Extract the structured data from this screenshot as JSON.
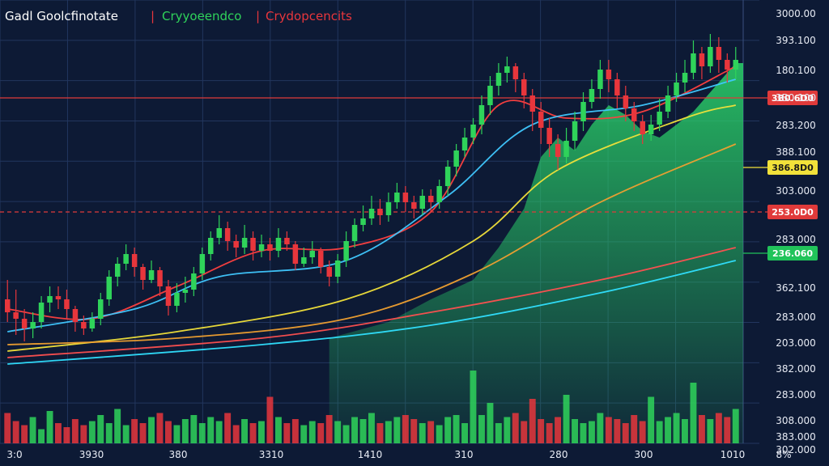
{
  "header": {
    "title": "Gadl Goolcfinotate",
    "separator_1": "|",
    "indicator_green": "Cryyoeendco",
    "separator_2": "|",
    "indicator_red": "Crydopcencits"
  },
  "colors": {
    "background": "#0d1a35",
    "grid": "#22365e",
    "up": "#2fd35a",
    "down": "#e8363c",
    "ma_fast": "#ff4040",
    "ma_mid": "#40c8ff",
    "ma_slow_yellow": "#f2e23a",
    "ma_slow_orange": "#f0a030",
    "ma_long_red": "#ff5050",
    "ma_long_cyan": "#30e0ff",
    "area_fill": "#2bd46a",
    "tag_red_bg": "#e03a3a",
    "tag_yellow_bg": "#f2e23a",
    "tag_green_bg": "#21c35a"
  },
  "chart_data": {
    "type": "candlestick",
    "y_axis_labels": [
      "3000.00",
      "393.100",
      "180.100",
      "3B0.100",
      "283.200",
      "388.100",
      "303.000",
      "283.000",
      "362.100",
      "283.000",
      "203.000",
      "382.000",
      "283.000",
      "308.000",
      "383.000",
      "302.000"
    ],
    "x_axis_labels": [
      "3:0",
      "3930",
      "380",
      "3310",
      "1410",
      "310",
      "280",
      "300",
      "1010"
    ],
    "x_axis_corner_label": "8%",
    "price_tags": [
      {
        "label": "3B0.6D0",
        "style": "red"
      },
      {
        "label": "386.8D0",
        "style": "yellow"
      },
      {
        "label": "253.0D0",
        "style": "red-dashed"
      },
      {
        "label": "236.060",
        "style": "green"
      }
    ],
    "ohlc": [
      [
        40,
        36,
        46,
        33
      ],
      [
        36,
        34,
        43,
        29
      ],
      [
        34,
        31,
        37,
        27
      ],
      [
        31,
        33,
        36,
        28
      ],
      [
        33,
        39,
        41,
        31
      ],
      [
        39,
        41,
        44,
        36
      ],
      [
        41,
        40,
        44,
        37
      ],
      [
        40,
        37,
        43,
        34
      ],
      [
        37,
        33,
        38,
        30
      ],
      [
        33,
        31,
        35,
        29
      ],
      [
        31,
        34,
        36,
        30
      ],
      [
        34,
        40,
        42,
        32
      ],
      [
        40,
        47,
        49,
        38
      ],
      [
        47,
        51,
        53,
        44
      ],
      [
        51,
        54,
        57,
        49
      ],
      [
        54,
        50,
        56,
        47
      ],
      [
        50,
        46,
        51,
        43
      ],
      [
        46,
        49,
        52,
        45
      ],
      [
        49,
        44,
        50,
        41
      ],
      [
        44,
        38,
        46,
        35
      ],
      [
        38,
        42,
        45,
        36
      ],
      [
        42,
        43,
        47,
        39
      ],
      [
        43,
        48,
        50,
        41
      ],
      [
        48,
        54,
        56,
        46
      ],
      [
        54,
        59,
        61,
        52
      ],
      [
        59,
        62,
        66,
        57
      ],
      [
        62,
        58,
        64,
        55
      ],
      [
        58,
        56,
        60,
        53
      ],
      [
        56,
        59,
        63,
        54
      ],
      [
        59,
        55,
        61,
        52
      ],
      [
        55,
        57,
        60,
        53
      ],
      [
        57,
        55,
        59,
        52
      ],
      [
        55,
        59,
        62,
        53
      ],
      [
        59,
        57,
        61,
        55
      ],
      [
        57,
        51,
        58,
        49
      ],
      [
        51,
        53,
        56,
        50
      ],
      [
        53,
        55,
        58,
        51
      ],
      [
        55,
        50,
        56,
        48
      ],
      [
        50,
        47,
        52,
        44
      ],
      [
        47,
        52,
        54,
        45
      ],
      [
        52,
        58,
        61,
        50
      ],
      [
        58,
        63,
        65,
        56
      ],
      [
        63,
        65,
        69,
        61
      ],
      [
        65,
        68,
        72,
        63
      ],
      [
        68,
        66,
        71,
        63
      ],
      [
        66,
        70,
        73,
        64
      ],
      [
        70,
        73,
        76,
        68
      ],
      [
        73,
        70,
        75,
        67
      ],
      [
        70,
        68,
        72,
        65
      ],
      [
        68,
        72,
        74,
        66
      ],
      [
        72,
        70,
        74,
        67
      ],
      [
        70,
        75,
        77,
        68
      ],
      [
        75,
        81,
        83,
        72
      ],
      [
        81,
        86,
        88,
        78
      ],
      [
        86,
        90,
        93,
        84
      ],
      [
        90,
        94,
        96,
        88
      ],
      [
        94,
        100,
        103,
        91
      ],
      [
        100,
        106,
        109,
        97
      ],
      [
        106,
        110,
        113,
        103
      ],
      [
        110,
        112,
        115,
        107
      ],
      [
        112,
        108,
        113,
        104
      ],
      [
        108,
        103,
        110,
        99
      ],
      [
        103,
        98,
        105,
        92
      ],
      [
        98,
        93,
        101,
        88
      ],
      [
        93,
        88,
        96,
        84
      ],
      [
        88,
        84,
        91,
        80
      ],
      [
        84,
        89,
        93,
        82
      ],
      [
        89,
        95,
        98,
        86
      ],
      [
        95,
        101,
        104,
        92
      ],
      [
        101,
        105,
        108,
        99
      ],
      [
        105,
        111,
        114,
        102
      ],
      [
        111,
        108,
        114,
        104
      ],
      [
        108,
        103,
        110,
        99
      ],
      [
        103,
        99,
        106,
        95
      ],
      [
        99,
        95,
        101,
        92
      ],
      [
        95,
        91,
        97,
        88
      ],
      [
        91,
        94,
        97,
        89
      ],
      [
        94,
        98,
        102,
        92
      ],
      [
        98,
        103,
        106,
        96
      ],
      [
        103,
        107,
        110,
        101
      ],
      [
        107,
        110,
        114,
        104
      ],
      [
        110,
        116,
        120,
        108
      ],
      [
        116,
        112,
        118,
        108
      ],
      [
        112,
        118,
        122,
        110
      ],
      [
        118,
        114,
        121,
        110
      ],
      [
        114,
        111,
        116,
        107
      ],
      [
        111,
        114,
        118,
        108
      ]
    ],
    "volumes": [
      30,
      22,
      18,
      26,
      14,
      32,
      20,
      16,
      24,
      18,
      22,
      28,
      20,
      34,
      18,
      24,
      20,
      26,
      30,
      22,
      18,
      24,
      28,
      20,
      26,
      22,
      30,
      18,
      24,
      20,
      22,
      46,
      26,
      20,
      24,
      18,
      22,
      20,
      28,
      22,
      18,
      26,
      24,
      30,
      20,
      22,
      26,
      28,
      24,
      20,
      22,
      18,
      26,
      28,
      20,
      72,
      28,
      40,
      20,
      26,
      30,
      22,
      44,
      24,
      20,
      26,
      48,
      24,
      20,
      22,
      30,
      26,
      24,
      20,
      28,
      22,
      46,
      22,
      26,
      30,
      24,
      60,
      28,
      24,
      30,
      26,
      34
    ],
    "ma_curves": {
      "fast": [
        [
          0,
          37
        ],
        [
          10,
          34
        ],
        [
          20,
          44
        ],
        [
          30,
          55
        ],
        [
          40,
          56
        ],
        [
          50,
          67
        ],
        [
          58,
          100
        ],
        [
          66,
          96
        ],
        [
          75,
          98
        ],
        [
          86,
          112
        ]
      ],
      "mid": [
        [
          0,
          30
        ],
        [
          15,
          37
        ],
        [
          25,
          47
        ],
        [
          40,
          52
        ],
        [
          52,
          72
        ],
        [
          62,
          94
        ],
        [
          75,
          100
        ],
        [
          86,
          108
        ]
      ],
      "yellow": [
        [
          0,
          24
        ],
        [
          20,
          30
        ],
        [
          40,
          40
        ],
        [
          55,
          58
        ],
        [
          65,
          80
        ],
        [
          80,
          96
        ],
        [
          86,
          100
        ]
      ],
      "orange": [
        [
          0,
          26
        ],
        [
          20,
          28
        ],
        [
          40,
          34
        ],
        [
          55,
          48
        ],
        [
          70,
          70
        ],
        [
          86,
          88
        ]
      ],
      "long_red": [
        [
          0,
          22
        ],
        [
          30,
          28
        ],
        [
          50,
          36
        ],
        [
          70,
          46
        ],
        [
          86,
          56
        ]
      ],
      "long_cyan": [
        [
          0,
          20
        ],
        [
          30,
          26
        ],
        [
          50,
          32
        ],
        [
          70,
          42
        ],
        [
          86,
          52
        ]
      ]
    },
    "area_curve": [
      [
        38,
        28
      ],
      [
        45,
        33
      ],
      [
        50,
        40
      ],
      [
        55,
        46
      ],
      [
        58,
        56
      ],
      [
        61,
        68
      ],
      [
        63,
        84
      ],
      [
        65,
        90
      ],
      [
        67,
        86
      ],
      [
        69,
        94
      ],
      [
        71,
        100
      ],
      [
        73,
        97
      ],
      [
        75,
        92
      ],
      [
        77,
        90
      ],
      [
        79,
        94
      ],
      [
        81,
        98
      ],
      [
        83,
        104
      ],
      [
        85,
        110
      ],
      [
        86,
        113
      ]
    ],
    "y_domain": [
      0,
      125
    ]
  }
}
